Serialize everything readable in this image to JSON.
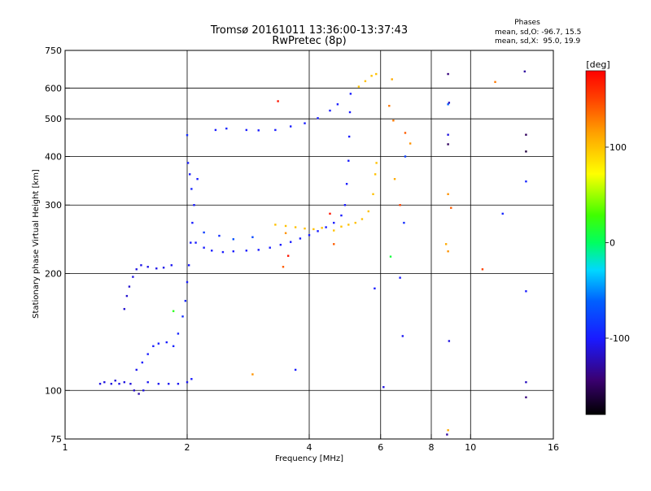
{
  "chart_data": {
    "type": "scatter",
    "title": "Tromsø 20161011 13:36:00-13:37:43",
    "subtitle": "RwPretec (8p)",
    "xlabel": "Frequency [MHz]",
    "ylabel": "Stationary phase Virtual Height [km]",
    "x_scale": "log",
    "y_scale": "log",
    "xlim": [
      1,
      16
    ],
    "ylim": [
      75,
      750
    ],
    "x_ticks": [
      1,
      2,
      4,
      6,
      8,
      10,
      16
    ],
    "x_tick_labels": [
      "1",
      "2",
      "4",
      "6",
      "8",
      "10",
      "16"
    ],
    "y_ticks": [
      75,
      100,
      200,
      300,
      400,
      500,
      600,
      750
    ],
    "y_tick_labels": [
      "75",
      "100",
      "200",
      "300",
      "400",
      "500",
      "600",
      "750"
    ],
    "grid": true,
    "stats": {
      "title": "Phases",
      "line_o": "mean, sd,O: -96.7, 15.5",
      "line_x": "mean, sd,X:  95.0, 19.9"
    },
    "colorbar": {
      "label": "[deg]",
      "range": [
        -180,
        180
      ],
      "ticks": [
        100,
        0,
        -100
      ],
      "tick_labels": [
        "100",
        "0",
        "-100"
      ]
    },
    "series": [
      {
        "points": [
          [
            1.22,
            104,
            -110
          ],
          [
            1.25,
            105,
            -110
          ],
          [
            1.3,
            104,
            -110
          ],
          [
            1.33,
            106,
            -112
          ],
          [
            1.36,
            104,
            -108
          ],
          [
            1.4,
            105,
            -110
          ],
          [
            1.45,
            104,
            -112
          ],
          [
            1.48,
            100,
            -120
          ],
          [
            1.52,
            98,
            -125
          ],
          [
            1.56,
            100,
            -110
          ],
          [
            1.6,
            105,
            -105
          ],
          [
            1.7,
            104,
            -105
          ],
          [
            1.8,
            104,
            -105
          ],
          [
            1.9,
            104,
            -105
          ],
          [
            2.0,
            105,
            -105
          ],
          [
            2.05,
            107,
            -100
          ],
          [
            1.5,
            113,
            -105
          ],
          [
            1.55,
            118,
            -100
          ],
          [
            1.6,
            124,
            -100
          ],
          [
            1.65,
            130,
            -100
          ],
          [
            1.7,
            132,
            -98
          ],
          [
            1.78,
            133,
            -100
          ],
          [
            1.85,
            130,
            -95
          ],
          [
            1.9,
            140,
            -95
          ],
          [
            1.95,
            155,
            -90
          ],
          [
            1.98,
            170,
            -95
          ],
          [
            2.0,
            190,
            -100
          ],
          [
            2.02,
            210,
            -100
          ],
          [
            2.04,
            240,
            -100
          ],
          [
            2.06,
            270,
            -100
          ],
          [
            2.08,
            300,
            -100
          ],
          [
            2.05,
            330,
            -95
          ],
          [
            2.03,
            360,
            -100
          ],
          [
            2.01,
            385,
            -100
          ],
          [
            2.12,
            350,
            -100
          ],
          [
            1.4,
            162,
            -115
          ],
          [
            1.42,
            175,
            -115
          ],
          [
            1.44,
            185,
            -115
          ],
          [
            1.47,
            196,
            -110
          ],
          [
            1.5,
            205,
            -110
          ],
          [
            1.54,
            210,
            -108
          ],
          [
            1.6,
            208,
            -108
          ],
          [
            1.68,
            206,
            -108
          ],
          [
            1.75,
            207,
            -108
          ],
          [
            1.83,
            210,
            -105
          ],
          [
            2.1,
            240,
            -100
          ],
          [
            2.2,
            233,
            -100
          ],
          [
            2.3,
            229,
            -100
          ],
          [
            2.45,
            227,
            -100
          ],
          [
            2.6,
            228,
            -100
          ],
          [
            2.8,
            229,
            -100
          ],
          [
            3.0,
            230,
            -100
          ],
          [
            3.2,
            233,
            -100
          ],
          [
            3.4,
            237,
            -100
          ],
          [
            3.6,
            241,
            -100
          ],
          [
            3.8,
            246,
            -100
          ],
          [
            4.0,
            251,
            -100
          ],
          [
            4.2,
            257,
            -100
          ],
          [
            4.4,
            263,
            -100
          ],
          [
            4.6,
            270,
            -100
          ],
          [
            4.8,
            282,
            -100
          ],
          [
            4.9,
            300,
            -100
          ],
          [
            4.95,
            340,
            -100
          ],
          [
            5.0,
            390,
            -100
          ],
          [
            5.02,
            450,
            -100
          ],
          [
            5.04,
            520,
            -100
          ],
          [
            5.06,
            580,
            -100
          ],
          [
            2.0,
            454,
            -90
          ],
          [
            2.35,
            468,
            -100
          ],
          [
            2.5,
            472,
            -95
          ],
          [
            2.8,
            468,
            -100
          ],
          [
            3.0,
            467,
            -100
          ],
          [
            3.3,
            468,
            -100
          ],
          [
            3.6,
            478,
            -100
          ],
          [
            3.9,
            487,
            -100
          ],
          [
            4.2,
            502,
            -100
          ],
          [
            4.5,
            525,
            -100
          ],
          [
            4.7,
            545,
            -100
          ],
          [
            2.6,
            245,
            -70
          ],
          [
            2.9,
            248,
            -75
          ],
          [
            2.2,
            255,
            -80
          ],
          [
            2.4,
            250,
            -90
          ]
        ]
      },
      {
        "points": [
          [
            3.3,
            267,
            100
          ],
          [
            3.5,
            265,
            100
          ],
          [
            3.7,
            263,
            100
          ],
          [
            3.9,
            261,
            100
          ],
          [
            4.1,
            260,
            100
          ],
          [
            4.3,
            262,
            100
          ],
          [
            4.6,
            258,
            100
          ],
          [
            4.8,
            264,
            100
          ],
          [
            5.0,
            267,
            100
          ],
          [
            5.2,
            270,
            100
          ],
          [
            5.4,
            276,
            100
          ],
          [
            5.6,
            289,
            100
          ],
          [
            5.75,
            320,
            100
          ],
          [
            5.82,
            360,
            100
          ],
          [
            5.86,
            385,
            100
          ],
          [
            5.3,
            605,
            100
          ],
          [
            5.5,
            625,
            100
          ],
          [
            5.7,
            645,
            100
          ],
          [
            5.85,
            652,
            100
          ],
          [
            4.6,
            238,
            140
          ],
          [
            3.5,
            254,
            120
          ],
          [
            2.9,
            110,
            120
          ],
          [
            6.4,
            632,
            110
          ],
          [
            6.3,
            540,
            130
          ],
          [
            6.45,
            495,
            130
          ],
          [
            6.5,
            350,
            110
          ],
          [
            6.7,
            300,
            150
          ],
          [
            6.9,
            460,
            140
          ],
          [
            7.1,
            432,
            120
          ],
          [
            8.8,
            228,
            120
          ],
          [
            8.7,
            238,
            110
          ],
          [
            8.95,
            295,
            140
          ],
          [
            8.8,
            320,
            120
          ],
          [
            8.8,
            79,
            110
          ],
          [
            11.5,
            622,
            130
          ],
          [
            10.7,
            205,
            150
          ],
          [
            3.35,
            555,
            170
          ],
          [
            3.45,
            208,
            140
          ],
          [
            3.55,
            222,
            170
          ],
          [
            4.5,
            285,
            170
          ]
        ]
      },
      {
        "points": [
          [
            6.35,
            221,
            10
          ],
          [
            1.85,
            160,
            20
          ],
          [
            6.7,
            195,
            -100
          ],
          [
            6.8,
            138,
            -105
          ],
          [
            6.1,
            102,
            -110
          ],
          [
            5.8,
            183,
            -100
          ],
          [
            6.9,
            400,
            -80
          ],
          [
            8.8,
            545,
            -60
          ],
          [
            8.85,
            550,
            -120
          ],
          [
            8.8,
            455,
            -110
          ],
          [
            8.8,
            430,
            -150
          ],
          [
            8.85,
            134,
            -110
          ],
          [
            8.75,
            77,
            -130
          ],
          [
            8.8,
            652,
            -140
          ],
          [
            13.6,
            662,
            -130
          ],
          [
            13.7,
            455,
            -150
          ],
          [
            13.7,
            412,
            -160
          ],
          [
            13.7,
            345,
            -95
          ],
          [
            13.7,
            180,
            -100
          ],
          [
            13.7,
            105,
            -120
          ],
          [
            13.7,
            96,
            -140
          ],
          [
            12.0,
            285,
            -95
          ],
          [
            3.7,
            113,
            -100
          ],
          [
            6.85,
            270,
            -90
          ]
        ]
      }
    ]
  }
}
